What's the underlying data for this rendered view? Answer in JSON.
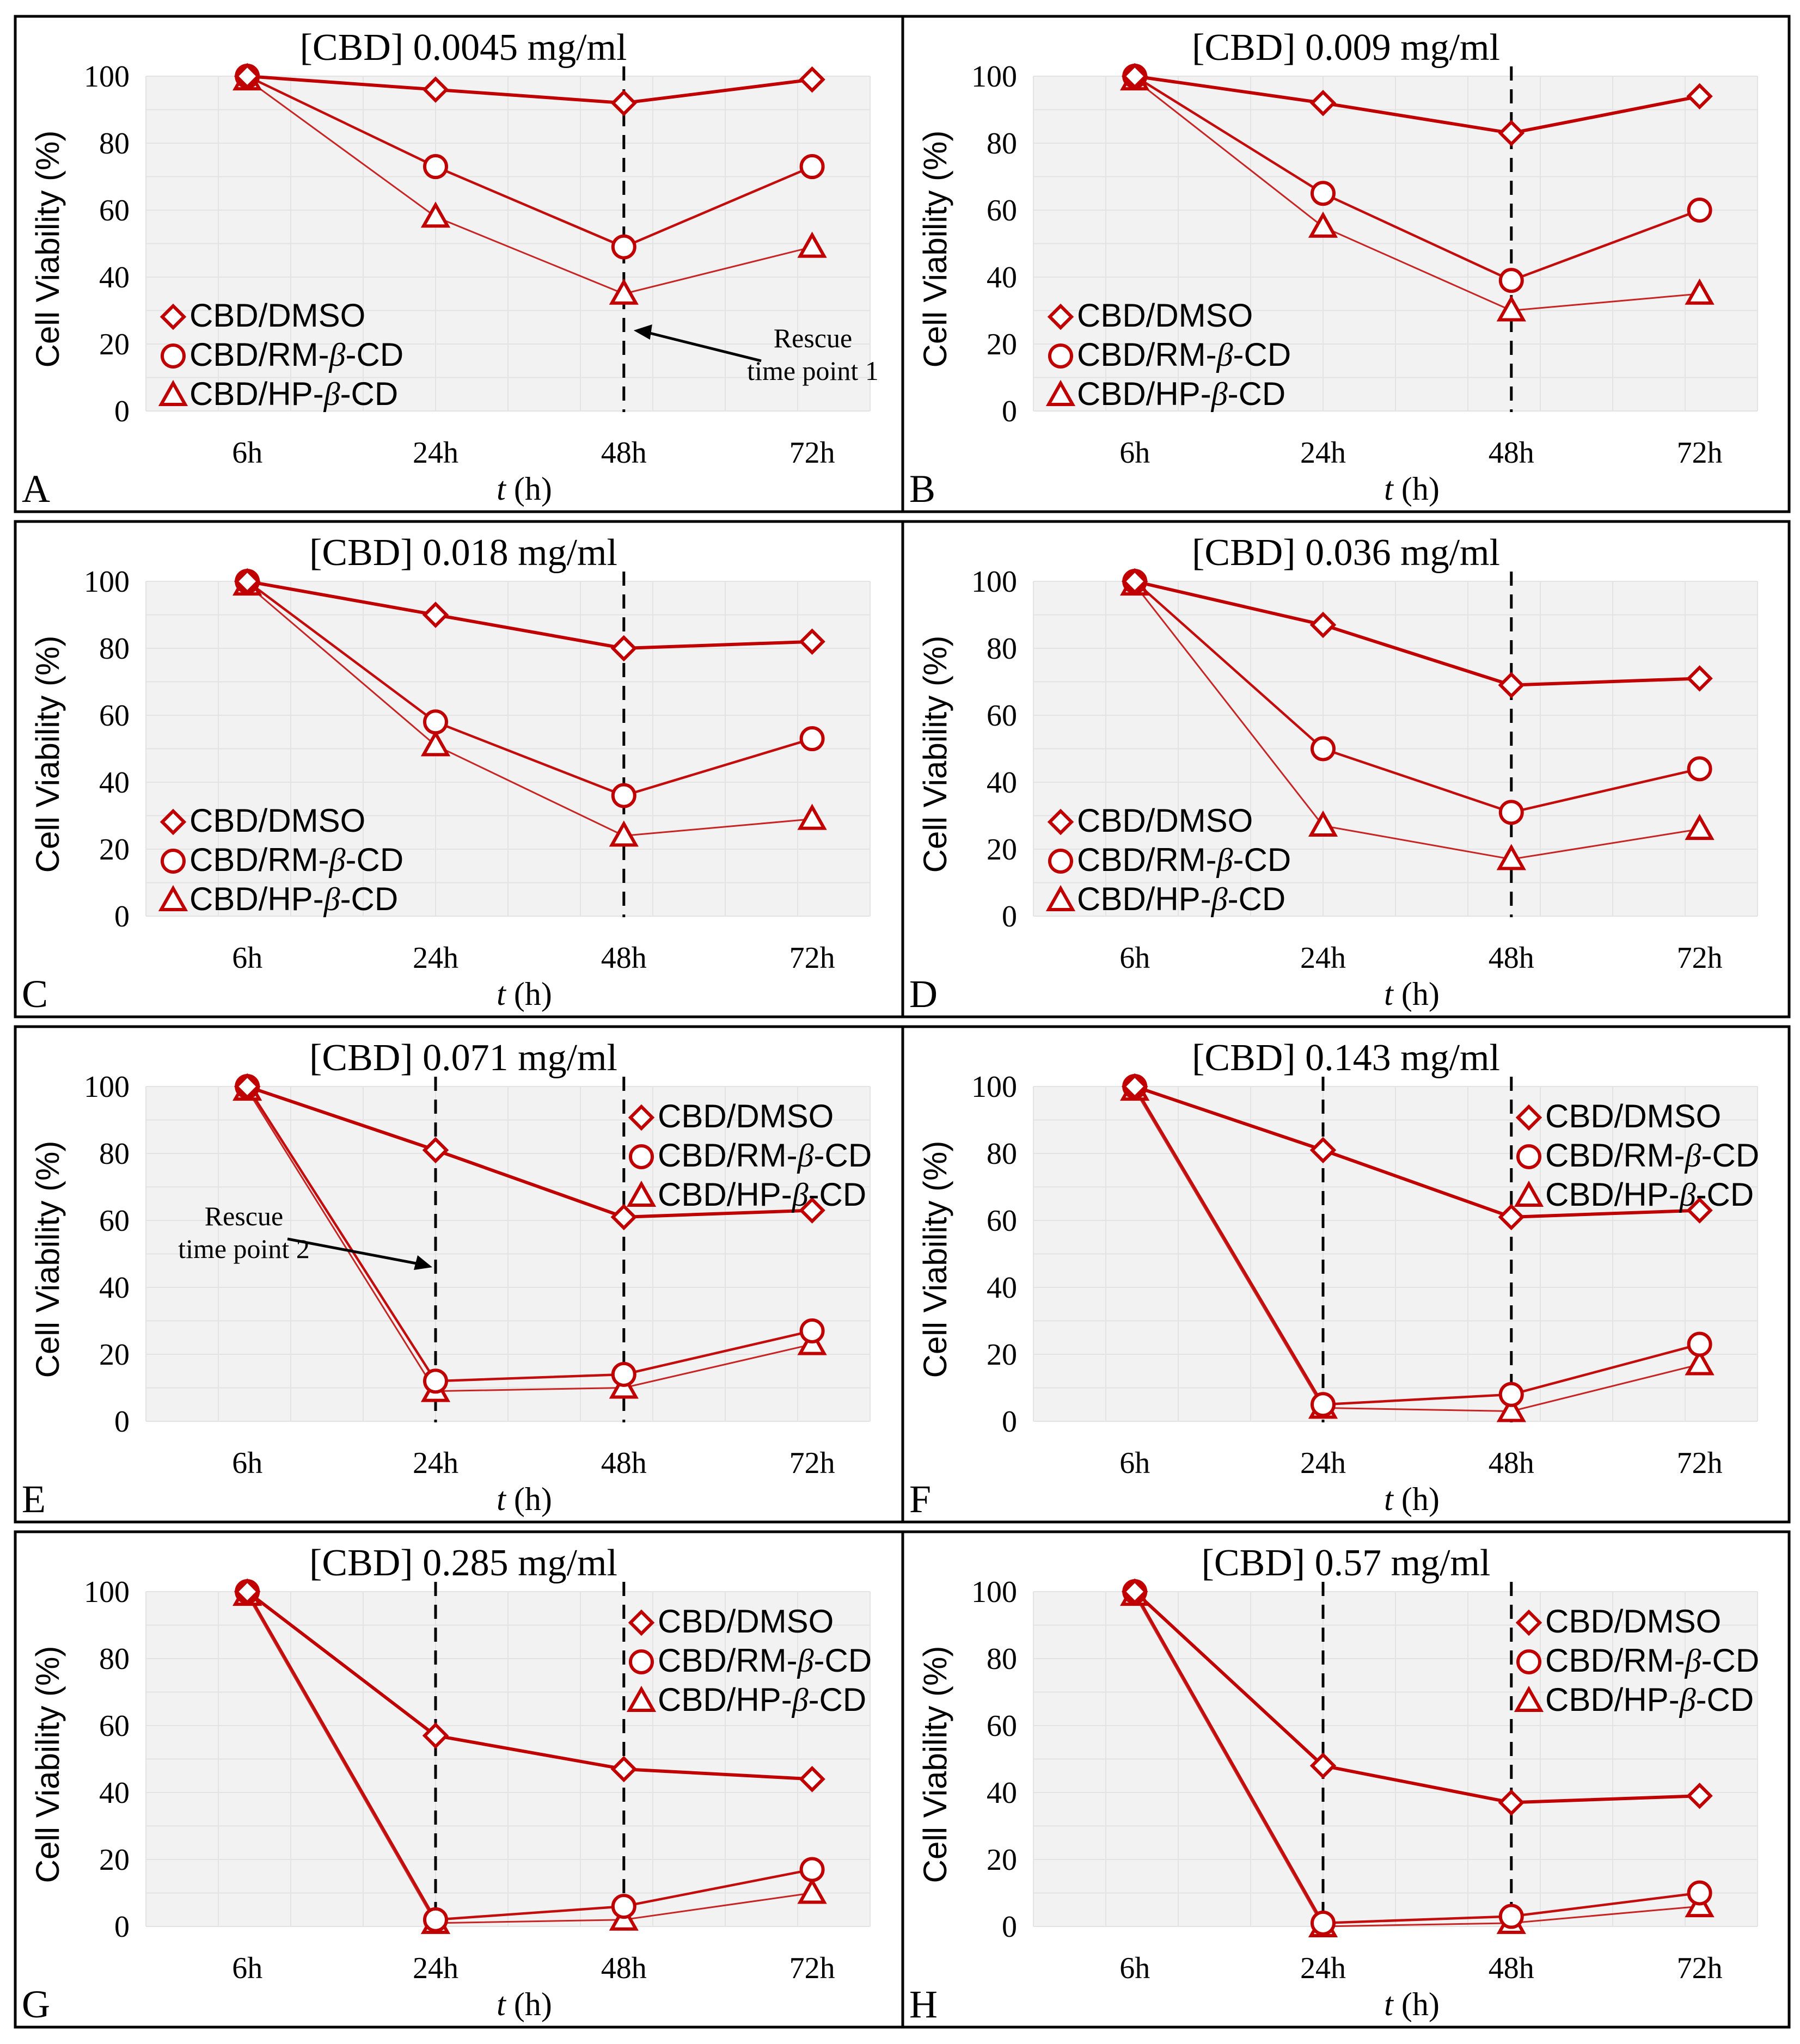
{
  "figure": {
    "x_axis_label_italic": "t",
    "x_axis_label_rest": " (h)",
    "y_axis_label": "Cell Viability (%)",
    "colors": {
      "series": "#c00000",
      "grid": "#e3e3e3",
      "plot_bg": "#f2f2f2",
      "rescue_line": "#000000"
    },
    "legend_labels": {
      "dmso": "CBD/DMSO",
      "rm_prefix": "CBD/RM-",
      "rm_beta": "β",
      "rm_suffix": "-CD",
      "hp_prefix": "CBD/HP-",
      "hp_beta": "β",
      "hp_suffix": "-CD"
    }
  },
  "chart_data": [
    {
      "panel": "A",
      "type": "line",
      "title": "[CBD] 0.0045 mg/ml",
      "categories": [
        "6h",
        "24h",
        "48h",
        "72h"
      ],
      "ylim": [
        0,
        100
      ],
      "yticks": [
        0,
        20,
        40,
        60,
        80,
        100
      ],
      "legend_position": "bottom-left",
      "series": [
        {
          "name": "CBD/DMSO",
          "marker": "diamond",
          "values": [
            100,
            96,
            92,
            99
          ]
        },
        {
          "name": "CBD/RM-β-CD",
          "marker": "circle",
          "values": [
            100,
            73,
            49,
            73
          ]
        },
        {
          "name": "CBD/HP-β-CD",
          "marker": "triangle",
          "values": [
            99,
            58,
            35,
            49
          ]
        }
      ],
      "rescue_lines_at": [
        "48h"
      ],
      "annotation": {
        "lines": [
          "Rescue",
          "time point 1"
        ],
        "points_to": "48h"
      }
    },
    {
      "panel": "B",
      "type": "line",
      "title": "[CBD] 0.009 mg/ml",
      "categories": [
        "6h",
        "24h",
        "48h",
        "72h"
      ],
      "ylim": [
        0,
        100
      ],
      "yticks": [
        0,
        20,
        40,
        60,
        80,
        100
      ],
      "legend_position": "bottom-left",
      "series": [
        {
          "name": "CBD/DMSO",
          "marker": "diamond",
          "values": [
            100,
            92,
            83,
            94
          ]
        },
        {
          "name": "CBD/RM-β-CD",
          "marker": "circle",
          "values": [
            100,
            65,
            39,
            60
          ]
        },
        {
          "name": "CBD/HP-β-CD",
          "marker": "triangle",
          "values": [
            99,
            55,
            30,
            35
          ]
        }
      ],
      "rescue_lines_at": [
        "48h"
      ]
    },
    {
      "panel": "C",
      "type": "line",
      "title": "[CBD] 0.018 mg/ml",
      "categories": [
        "6h",
        "24h",
        "48h",
        "72h"
      ],
      "ylim": [
        0,
        100
      ],
      "yticks": [
        0,
        20,
        40,
        60,
        80,
        100
      ],
      "legend_position": "bottom-left",
      "series": [
        {
          "name": "CBD/DMSO",
          "marker": "diamond",
          "values": [
            100,
            90,
            80,
            82
          ]
        },
        {
          "name": "CBD/RM-β-CD",
          "marker": "circle",
          "values": [
            100,
            58,
            36,
            53
          ]
        },
        {
          "name": "CBD/HP-β-CD",
          "marker": "triangle",
          "values": [
            99,
            51,
            24,
            29
          ]
        }
      ],
      "rescue_lines_at": [
        "48h"
      ]
    },
    {
      "panel": "D",
      "type": "line",
      "title": "[CBD] 0.036 mg/ml",
      "categories": [
        "6h",
        "24h",
        "48h",
        "72h"
      ],
      "ylim": [
        0,
        100
      ],
      "yticks": [
        0,
        20,
        40,
        60,
        80,
        100
      ],
      "legend_position": "bottom-left",
      "series": [
        {
          "name": "CBD/DMSO",
          "marker": "diamond",
          "values": [
            100,
            87,
            69,
            71
          ]
        },
        {
          "name": "CBD/RM-β-CD",
          "marker": "circle",
          "values": [
            100,
            50,
            31,
            44
          ]
        },
        {
          "name": "CBD/HP-β-CD",
          "marker": "triangle",
          "values": [
            99,
            27,
            17,
            26
          ]
        }
      ],
      "rescue_lines_at": [
        "48h"
      ]
    },
    {
      "panel": "E",
      "type": "line",
      "title": "[CBD] 0.071 mg/ml",
      "categories": [
        "6h",
        "24h",
        "48h",
        "72h"
      ],
      "ylim": [
        0,
        100
      ],
      "yticks": [
        0,
        20,
        40,
        60,
        80,
        100
      ],
      "legend_position": "top-right",
      "series": [
        {
          "name": "CBD/DMSO",
          "marker": "diamond",
          "values": [
            100,
            81,
            61,
            63
          ]
        },
        {
          "name": "CBD/RM-β-CD",
          "marker": "circle",
          "values": [
            100,
            12,
            14,
            27
          ]
        },
        {
          "name": "CBD/HP-β-CD",
          "marker": "triangle",
          "values": [
            99,
            9,
            10,
            23
          ]
        }
      ],
      "rescue_lines_at": [
        "24h",
        "48h"
      ],
      "annotation": {
        "lines": [
          "Rescue",
          "time point 2"
        ],
        "points_to": "24h"
      }
    },
    {
      "panel": "F",
      "type": "line",
      "title": "[CBD] 0.143 mg/ml",
      "categories": [
        "6h",
        "24h",
        "48h",
        "72h"
      ],
      "ylim": [
        0,
        100
      ],
      "yticks": [
        0,
        20,
        40,
        60,
        80,
        100
      ],
      "legend_position": "top-right",
      "series": [
        {
          "name": "CBD/DMSO",
          "marker": "diamond",
          "values": [
            100,
            81,
            61,
            63
          ]
        },
        {
          "name": "CBD/RM-β-CD",
          "marker": "circle",
          "values": [
            100,
            5,
            8,
            23
          ]
        },
        {
          "name": "CBD/HP-β-CD",
          "marker": "triangle",
          "values": [
            99,
            4,
            3,
            17
          ]
        }
      ],
      "rescue_lines_at": [
        "24h",
        "48h"
      ]
    },
    {
      "panel": "G",
      "type": "line",
      "title": "[CBD] 0.285 mg/ml",
      "categories": [
        "6h",
        "24h",
        "48h",
        "72h"
      ],
      "ylim": [
        0,
        100
      ],
      "yticks": [
        0,
        20,
        40,
        60,
        80,
        100
      ],
      "legend_position": "top-right",
      "series": [
        {
          "name": "CBD/DMSO",
          "marker": "diamond",
          "values": [
            100,
            57,
            47,
            44
          ]
        },
        {
          "name": "CBD/RM-β-CD",
          "marker": "circle",
          "values": [
            100,
            2,
            6,
            17
          ]
        },
        {
          "name": "CBD/HP-β-CD",
          "marker": "triangle",
          "values": [
            99,
            1,
            2,
            10
          ]
        }
      ],
      "rescue_lines_at": [
        "24h",
        "48h"
      ]
    },
    {
      "panel": "H",
      "type": "line",
      "title": "[CBD] 0.57 mg/ml",
      "categories": [
        "6h",
        "24h",
        "48h",
        "72h"
      ],
      "ylim": [
        0,
        100
      ],
      "yticks": [
        0,
        20,
        40,
        60,
        80,
        100
      ],
      "legend_position": "top-right",
      "series": [
        {
          "name": "CBD/DMSO",
          "marker": "diamond",
          "values": [
            100,
            48,
            37,
            39
          ]
        },
        {
          "name": "CBD/RM-β-CD",
          "marker": "circle",
          "values": [
            100,
            1,
            3,
            10
          ]
        },
        {
          "name": "CBD/HP-β-CD",
          "marker": "triangle",
          "values": [
            99,
            0,
            1,
            6
          ]
        }
      ],
      "rescue_lines_at": [
        "24h",
        "48h"
      ]
    }
  ]
}
